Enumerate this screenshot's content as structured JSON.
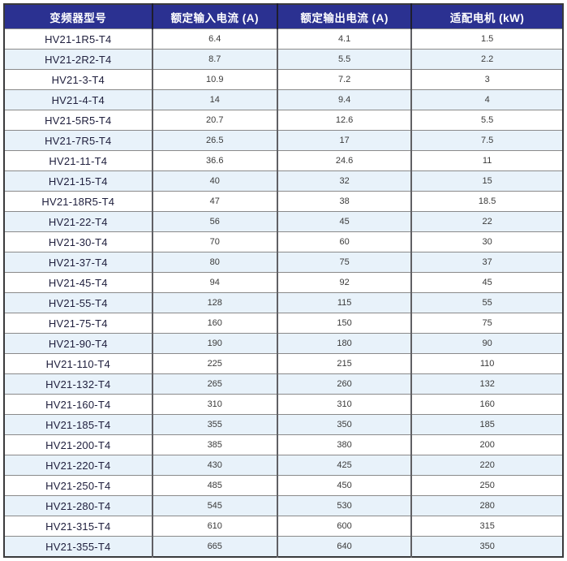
{
  "table": {
    "columns": [
      "变频器型号",
      "额定输入电流 (A)",
      "额定输出电流 (A)",
      "适配电机 (kW)"
    ],
    "rows": [
      [
        "HV21-1R5-T4",
        "6.4",
        "4.1",
        "1.5"
      ],
      [
        "HV21-2R2-T4",
        "8.7",
        "5.5",
        "2.2"
      ],
      [
        "HV21-3-T4",
        "10.9",
        "7.2",
        "3"
      ],
      [
        "HV21-4-T4",
        "14",
        "9.4",
        "4"
      ],
      [
        "HV21-5R5-T4",
        "20.7",
        "12.6",
        "5.5"
      ],
      [
        "HV21-7R5-T4",
        "26.5",
        "17",
        "7.5"
      ],
      [
        "HV21-11-T4",
        "36.6",
        "24.6",
        "11"
      ],
      [
        "HV21-15-T4",
        "40",
        "32",
        "15"
      ],
      [
        "HV21-18R5-T4",
        "47",
        "38",
        "18.5"
      ],
      [
        "HV21-22-T4",
        "56",
        "45",
        "22"
      ],
      [
        "HV21-30-T4",
        "70",
        "60",
        "30"
      ],
      [
        "HV21-37-T4",
        "80",
        "75",
        "37"
      ],
      [
        "HV21-45-T4",
        "94",
        "92",
        "45"
      ],
      [
        "HV21-55-T4",
        "128",
        "115",
        "55"
      ],
      [
        "HV21-75-T4",
        "160",
        "150",
        "75"
      ],
      [
        "HV21-90-T4",
        "190",
        "180",
        "90"
      ],
      [
        "HV21-110-T4",
        "225",
        "215",
        "110"
      ],
      [
        "HV21-132-T4",
        "265",
        "260",
        "132"
      ],
      [
        "HV21-160-T4",
        "310",
        "310",
        "160"
      ],
      [
        "HV21-185-T4",
        "355",
        "350",
        "185"
      ],
      [
        "HV21-200-T4",
        "385",
        "380",
        "200"
      ],
      [
        "HV21-220-T4",
        "430",
        "425",
        "220"
      ],
      [
        "HV21-250-T4",
        "485",
        "450",
        "250"
      ],
      [
        "HV21-280-T4",
        "545",
        "530",
        "280"
      ],
      [
        "HV21-315-T4",
        "610",
        "600",
        "315"
      ],
      [
        "HV21-355-T4",
        "665",
        "640",
        "350"
      ]
    ]
  },
  "colors": {
    "header_bg": "#2b3191",
    "header_text": "#ffffff",
    "stripe_row_bg": "#e8f2fa",
    "white_row_bg": "#ffffff",
    "outer_border": "#3a3a3c",
    "vertical_grid": "#606064",
    "horizontal_grid": "#8a8a8a",
    "model_text": "#20203e",
    "number_text": "#3a3a3a"
  }
}
